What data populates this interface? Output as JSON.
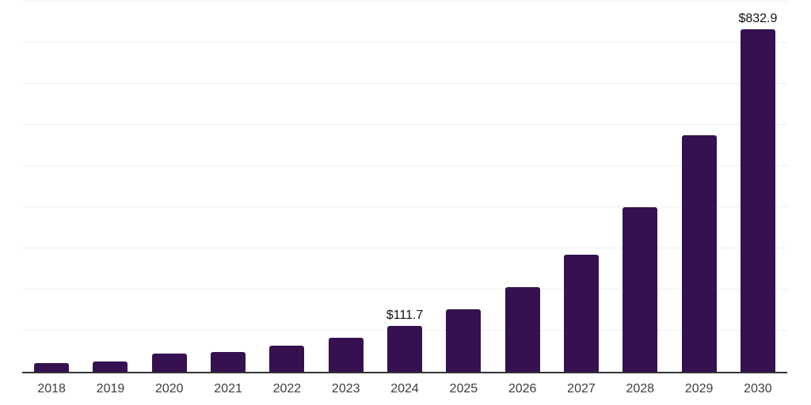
{
  "chart_data": {
    "type": "bar",
    "title": "",
    "xlabel": "",
    "ylabel": "",
    "categories": [
      "2018",
      "2019",
      "2020",
      "2021",
      "2022",
      "2023",
      "2024",
      "2025",
      "2026",
      "2027",
      "2028",
      "2029",
      "2030"
    ],
    "values": [
      21,
      25,
      44,
      48,
      63,
      82,
      111.7,
      151,
      205,
      284,
      400,
      575,
      832.9
    ],
    "data_labels": [
      "",
      "",
      "",
      "",
      "",
      "",
      "$111.7",
      "",
      "",
      "",
      "",
      "",
      "$832.9"
    ],
    "ylim": [
      0,
      900
    ],
    "gridline_step": 100,
    "grid": "horizontal-only",
    "legend": "none",
    "y_axis_tick_labels_visible": false,
    "colors": {
      "bar_fill": "#35114F",
      "axis_line": "#333333",
      "gridline": "#ededed",
      "tick_label": "#3d3d3d",
      "data_label": "#111111",
      "background": "#ffffff"
    }
  }
}
